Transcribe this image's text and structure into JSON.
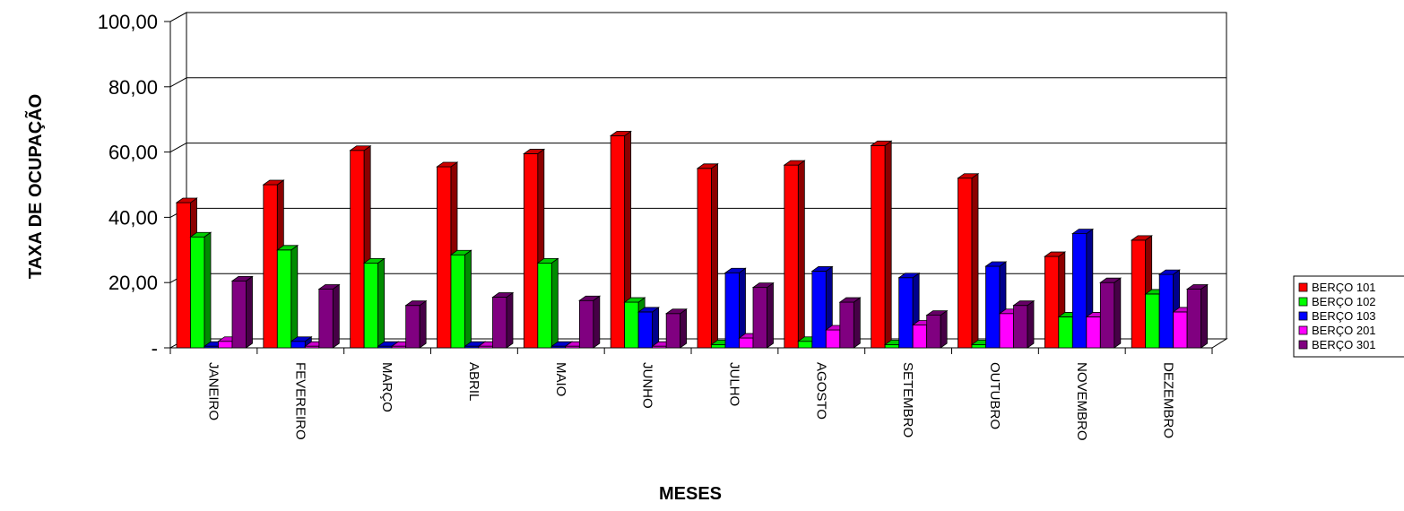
{
  "chart_data": {
    "type": "bar",
    "xlabel": "MESES",
    "ylabel": "TAXA DE OCUPAÇÃO",
    "ylim": [
      0,
      100
    ],
    "y_ticks": [
      "-",
      "20,00",
      "40,00",
      "60,00",
      "80,00",
      "100,00"
    ],
    "y_tick_values": [
      0,
      20,
      40,
      60,
      80,
      100
    ],
    "grid": true,
    "legend_position": "right",
    "three_d": true,
    "categories": [
      "JANEIRO",
      "FEVEREIRO",
      "MARÇO",
      "ABRIL",
      "MAIO",
      "JUNHO",
      "JULHO",
      "AGOSTO",
      "SETEMBRO",
      "OUTUBRO",
      "NOVEMBRO",
      "DEZEMBRO"
    ],
    "series": [
      {
        "name": "BERÇO 101",
        "color": "#ff0000",
        "values": [
          44.5,
          50.0,
          60.5,
          55.5,
          59.5,
          65.0,
          55.0,
          56.0,
          62.0,
          52.0,
          28.0,
          33.0
        ]
      },
      {
        "name": "BERÇO 102",
        "color": "#00ff00",
        "values": [
          34.0,
          30.0,
          26.0,
          28.5,
          26.0,
          14.0,
          1.0,
          2.0,
          1.0,
          1.0,
          9.5,
          16.5
        ]
      },
      {
        "name": "BERÇO 103",
        "color": "#0000ff",
        "values": [
          0.5,
          2.0,
          0.5,
          0.5,
          0.5,
          11.0,
          23.0,
          23.5,
          21.5,
          25.0,
          35.0,
          22.5
        ]
      },
      {
        "name": "BERÇO 201",
        "color": "#ff00ff",
        "values": [
          2.0,
          0.5,
          0.5,
          0.5,
          0.5,
          0.5,
          3.0,
          5.5,
          7.0,
          10.5,
          9.5,
          11.0
        ]
      },
      {
        "name": "BERÇO 301",
        "color": "#800080",
        "values": [
          20.5,
          18.0,
          13.0,
          15.5,
          14.5,
          10.5,
          18.5,
          14.0,
          10.0,
          13.0,
          20.0,
          18.0
        ]
      }
    ]
  }
}
